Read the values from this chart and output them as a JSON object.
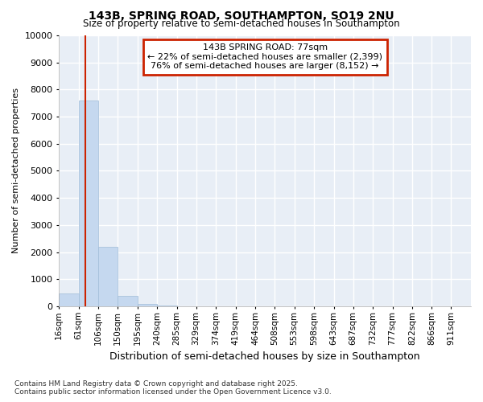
{
  "title_line1": "143B, SPRING ROAD, SOUTHAMPTON, SO19 2NU",
  "title_line2": "Size of property relative to semi-detached houses in Southampton",
  "xlabel": "Distribution of semi-detached houses by size in Southampton",
  "ylabel": "Number of semi-detached properties",
  "annotation_title": "143B SPRING ROAD: 77sqm",
  "annotation_line2": "← 22% of semi-detached houses are smaller (2,399)",
  "annotation_line3": "76% of semi-detached houses are larger (8,152) →",
  "footer_line1": "Contains HM Land Registry data © Crown copyright and database right 2025.",
  "footer_line2": "Contains public sector information licensed under the Open Government Licence v3.0.",
  "bar_color": "#c5d8ef",
  "bar_edge_color": "#a0bcd8",
  "background_color": "#e8eef6",
  "plot_bg_color": "#e8eef6",
  "grid_color": "#ffffff",
  "red_line_color": "#cc2200",
  "annotation_border_color": "#cc2200",
  "categories": [
    "16sqm",
    "61sqm",
    "106sqm",
    "150sqm",
    "195sqm",
    "240sqm",
    "285sqm",
    "329sqm",
    "374sqm",
    "419sqm",
    "464sqm",
    "508sqm",
    "553sqm",
    "598sqm",
    "643sqm",
    "687sqm",
    "732sqm",
    "777sqm",
    "822sqm",
    "866sqm",
    "911sqm"
  ],
  "bin_edges": [
    16,
    61,
    106,
    150,
    195,
    240,
    285,
    329,
    374,
    419,
    464,
    508,
    553,
    598,
    643,
    687,
    732,
    777,
    822,
    866,
    911,
    956
  ],
  "values": [
    480,
    7600,
    2200,
    380,
    100,
    15,
    5,
    3,
    3,
    3,
    3,
    2,
    2,
    2,
    2,
    2,
    2,
    2,
    2,
    2,
    2
  ],
  "red_line_x": 77,
  "ylim": [
    0,
    10000
  ],
  "yticks": [
    0,
    1000,
    2000,
    3000,
    4000,
    5000,
    6000,
    7000,
    8000,
    9000,
    10000
  ]
}
